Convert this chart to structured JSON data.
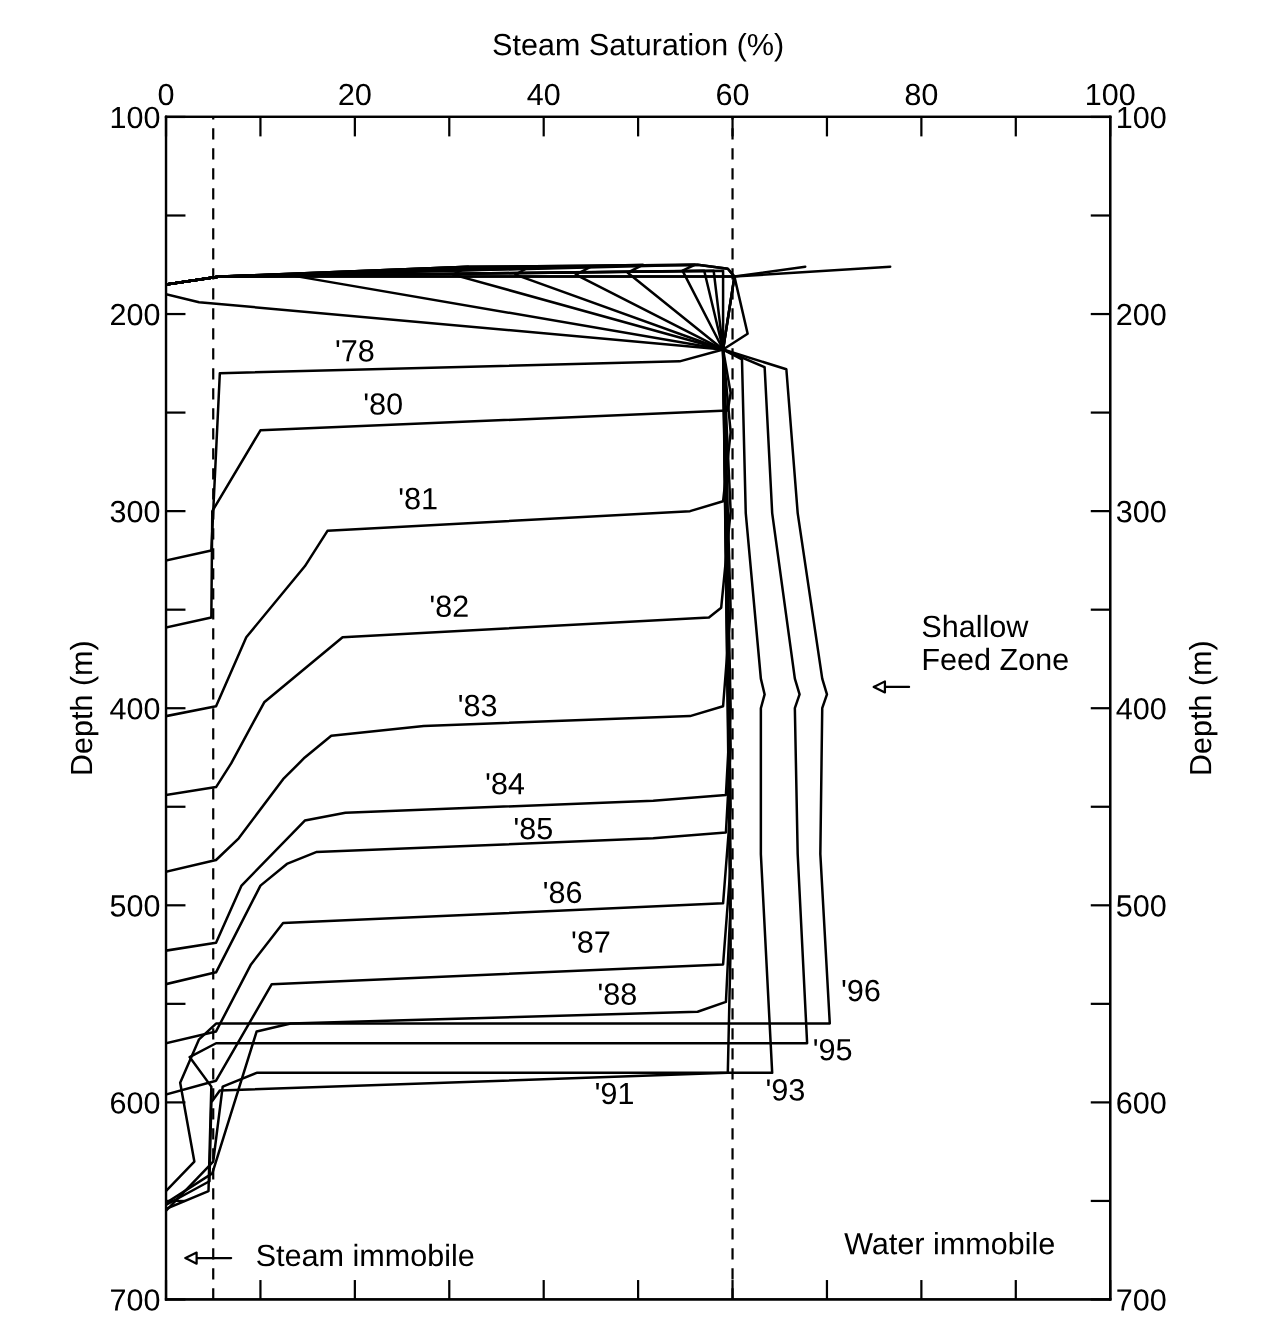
{
  "chart_data": {
    "type": "line",
    "xlabel": "Steam Saturation (%)",
    "ylabel": "Depth (m)",
    "y2label": "Depth (m)",
    "xlim": [
      0,
      100
    ],
    "ylim": [
      700,
      100
    ],
    "y2lim": [
      700,
      100
    ],
    "xticks": [
      0,
      {
        "value": 10,
        "label": null
      },
      20,
      {
        "value": 30,
        "label": null
      },
      40,
      {
        "value": 50,
        "label": null
      },
      60,
      {
        "value": 70,
        "label": null
      },
      80,
      {
        "value": 90,
        "label": null
      },
      100
    ],
    "yticks": [
      100,
      {
        "value": 150,
        "label": null
      },
      200,
      {
        "value": 250,
        "label": null
      },
      300,
      {
        "value": 350,
        "label": null
      },
      400,
      {
        "value": 450,
        "label": null
      },
      500,
      {
        "value": 550,
        "label": null
      },
      600,
      {
        "value": 650,
        "label": null
      },
      700
    ],
    "y2ticks": [
      100,
      {
        "value": 150,
        "label": null
      },
      200,
      {
        "value": 250,
        "label": null
      },
      300,
      {
        "value": 350,
        "label": null
      },
      400,
      {
        "value": 450,
        "label": null
      },
      500,
      {
        "value": 550,
        "label": null
      },
      600,
      {
        "value": 650,
        "label": null
      },
      700
    ],
    "grid": false,
    "legend": false,
    "marker": "none",
    "line_style": "solid",
    "series": [
      {
        "name": "'78",
        "color": "#000000",
        "x": [
          0,
          3.5,
          59,
          54.4,
          5.7,
          4.8,
          0
        ],
        "values": [
          190,
          194,
          218,
          224,
          230,
          320,
          325
        ]
      },
      {
        "name": "'80",
        "color": "#000000",
        "x": [
          0,
          5.7,
          12.8,
          59,
          59.8,
          59.5,
          10,
          4.9,
          4.8,
          0
        ],
        "values": [
          185,
          181,
          180,
          218,
          240,
          249,
          259,
          300,
          354,
          359
        ]
      },
      {
        "name": "'81",
        "color": "#000000",
        "x": [
          0,
          5.7,
          32,
          30.4,
          59,
          59.8,
          59,
          55.5,
          17.1,
          14.7,
          8.5,
          5.3,
          0
        ],
        "values": [
          185,
          181,
          176,
          180,
          218,
          260,
          295,
          300,
          310,
          328,
          364,
          399,
          404
        ]
      },
      {
        "name": "'82",
        "color": "#000000",
        "x": [
          0,
          5.7,
          38.5,
          37,
          59,
          59.8,
          58.8,
          57.5,
          18.7,
          10.4,
          6.9,
          5.3,
          0
        ],
        "values": [
          185,
          181,
          176,
          180,
          218,
          300,
          349,
          354,
          364,
          397,
          428,
          440,
          444
        ]
      },
      {
        "name": "'83",
        "color": "#000000",
        "x": [
          0,
          5.7,
          45,
          43.4,
          59,
          59.8,
          59,
          55.5,
          27.3,
          17.5,
          14.7,
          12.4,
          7.7,
          5.3,
          0
        ],
        "values": [
          185,
          181,
          176,
          180,
          218,
          350,
          399,
          404,
          409,
          414,
          425,
          436,
          466,
          477,
          483
        ]
      },
      {
        "name": "'84",
        "color": "#000000",
        "x": [
          0,
          5.7,
          50.5,
          48.9,
          59,
          59.8,
          59.3,
          51.6,
          19,
          14.7,
          8,
          5.3,
          0
        ],
        "values": [
          185,
          181,
          175,
          179,
          218,
          400,
          444,
          447,
          453,
          457,
          490,
          519,
          523
        ]
      },
      {
        "name": "'85",
        "color": "#000000",
        "x": [
          0,
          5.7,
          56,
          54.7,
          59,
          59.8,
          59.3,
          51.6,
          15.9,
          12.8,
          10,
          5.3,
          0
        ],
        "values": [
          185,
          181,
          175,
          178,
          218,
          420,
          463,
          466,
          473,
          479,
          490,
          534,
          540
        ]
      },
      {
        "name": "'86",
        "color": "#000000",
        "x": [
          0,
          5.7,
          57,
          59,
          59.8,
          59,
          12.4,
          9,
          5.3,
          0
        ],
        "values": [
          185,
          181,
          178,
          218,
          450,
          499,
          509,
          530,
          564,
          570
        ]
      },
      {
        "name": "'87",
        "color": "#000000",
        "x": [
          0,
          5.7,
          58,
          59,
          59.8,
          59,
          11.2,
          5.3,
          0
        ],
        "values": [
          185,
          181,
          178,
          218,
          480,
          530,
          540,
          589,
          596
        ]
      },
      {
        "name": "'88",
        "color": "#000000",
        "x": [
          0,
          5.7,
          59,
          59,
          59.8,
          59.3,
          56.3,
          13.2,
          9.6,
          4.9,
          0
        ],
        "values": [
          185,
          181,
          178,
          218,
          500,
          549,
          554,
          560,
          564,
          636,
          651
        ]
      },
      {
        "name": "'91",
        "color": "#000000",
        "x": [
          0,
          5.7,
          60.2,
          61.6,
          59,
          59.8,
          59.5,
          5.7,
          4.8,
          4.6,
          0
        ],
        "values": [
          185,
          181,
          181,
          210,
          218,
          520,
          585,
          594,
          600,
          640,
          652
        ]
      },
      {
        "name": "'93",
        "color": "#000000",
        "x": [
          0,
          5.7,
          32,
          56.3,
          59.5,
          60.2,
          67.7,
          60.2,
          59,
          61,
          61.4,
          63,
          63.4,
          63,
          63,
          64.2,
          9.6,
          6,
          5,
          0
        ],
        "values": [
          185,
          181,
          176,
          175,
          177,
          181,
          176,
          181,
          218,
          223,
          301,
          385,
          393,
          400,
          474,
          585,
          585,
          592,
          630,
          655
        ]
      },
      {
        "name": "'95",
        "color": "#000000",
        "x": [
          0,
          5.7,
          32,
          56.3,
          59.5,
          60.2,
          76.7,
          60.2,
          59,
          63.4,
          64.2,
          66.6,
          67.1,
          66.6,
          66.9,
          67.9,
          5.3,
          2.5,
          4.8,
          4.5,
          0
        ],
        "values": [
          185,
          181,
          176,
          175,
          177,
          181,
          176,
          181,
          218,
          227,
          301,
          385,
          393,
          400,
          474,
          570,
          570,
          577,
          592,
          645,
          654
        ]
      },
      {
        "name": "'96",
        "color": "#000000",
        "x": [
          0,
          5.7,
          60.2,
          59,
          65.7,
          66.9,
          69.5,
          70,
          69.5,
          69.3,
          70.3,
          5.3,
          3.5,
          1.5,
          3,
          0
        ],
        "values": [
          185,
          181,
          181,
          218,
          228,
          301,
          385,
          393,
          400,
          474,
          560,
          560,
          568,
          590,
          630,
          645
        ]
      }
    ],
    "ref_lines": [
      {
        "axis": "x",
        "value": 5,
        "color": "#000000",
        "line_style": "dashed"
      },
      {
        "axis": "x",
        "value": 60,
        "color": "#000000",
        "line_style": "dashed"
      }
    ],
    "annotations": [
      "Shallow\nFeed Zone",
      "Steam immobile",
      "Water immobile"
    ]
  }
}
